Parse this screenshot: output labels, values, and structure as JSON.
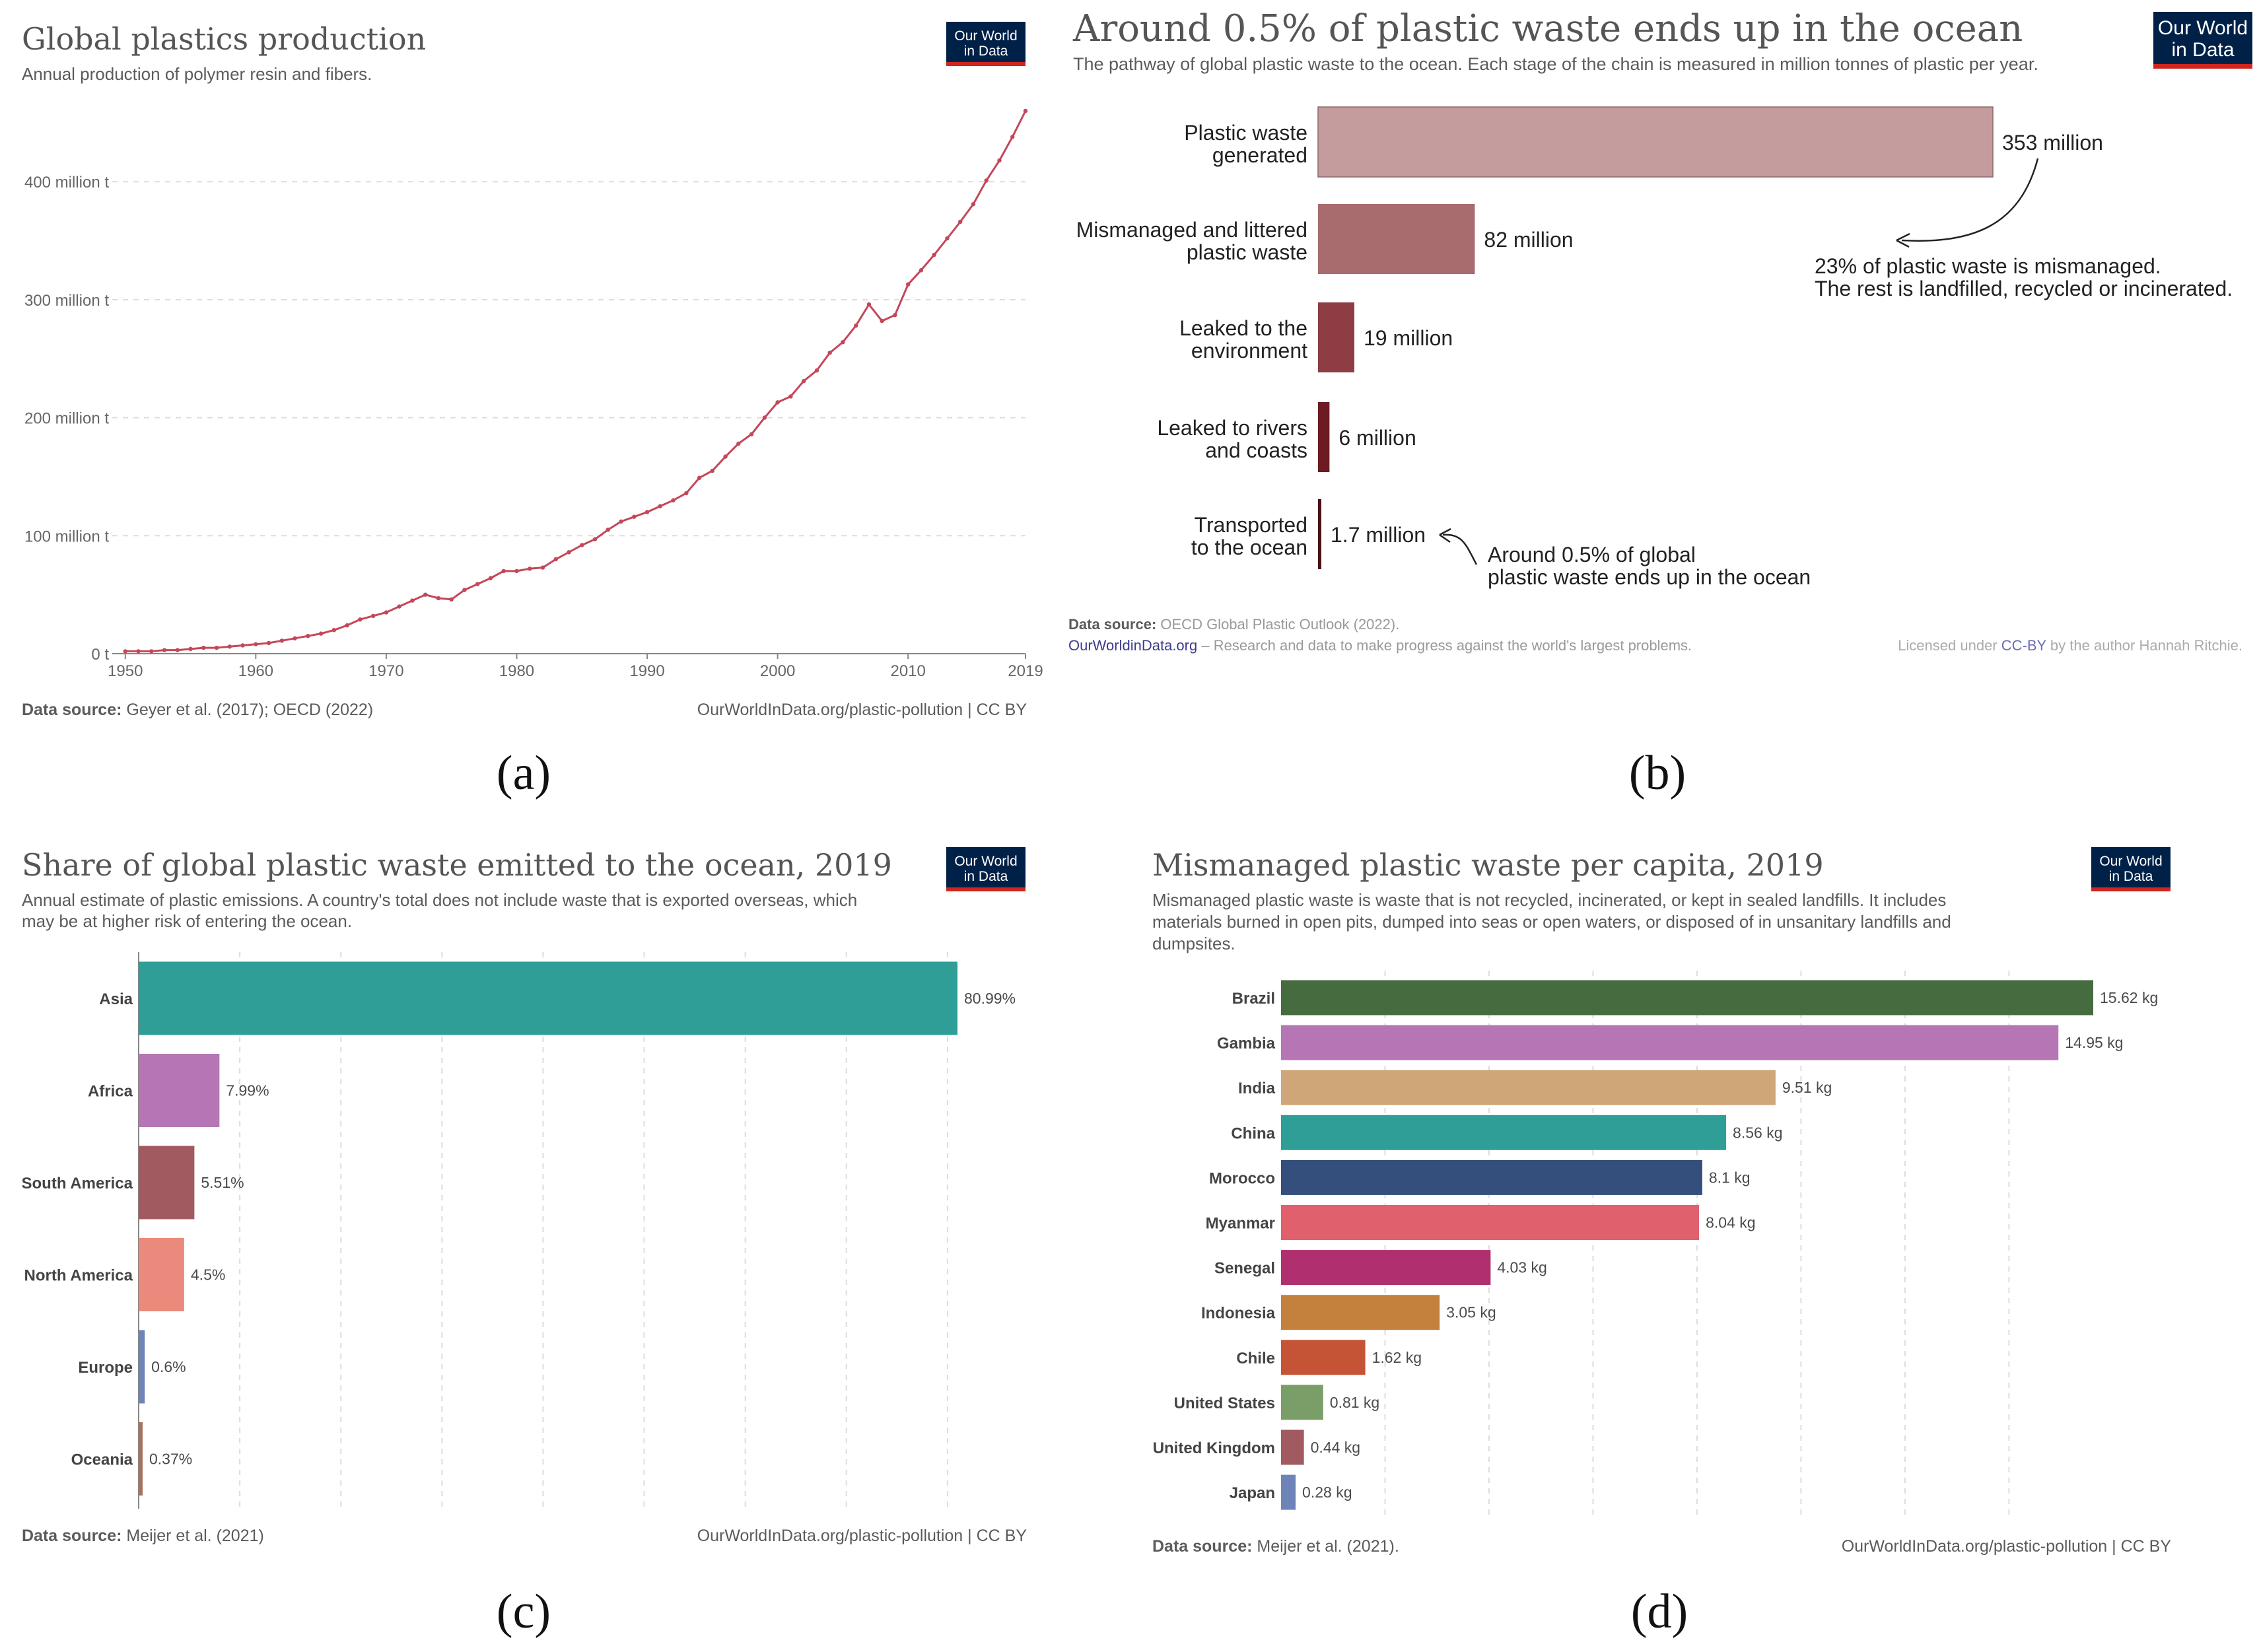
{
  "panels": {
    "a": {
      "label": "(a)",
      "title": "Global plastics production",
      "subtitle": "Annual production of polymer resin and fibers.",
      "source_label": "Data source:",
      "source_text": " Geyer et al. (2017); OECD (2022)",
      "url": "OurWorldInData.org/plastic-pollution | CC BY",
      "logo": {
        "line1": "Our World",
        "line2": "in Data"
      }
    },
    "b": {
      "label": "(b)",
      "title": "Around 0.5% of plastic waste ends up in the ocean",
      "subtitle": "The pathway of global plastic waste to the ocean. Each stage of the chain is measured in million tonnes of plastic per year.",
      "annotation1_line1": "23% of plastic waste is mismanaged.",
      "annotation1_line2": "The rest is landfilled, recycled or incinerated.",
      "annotation2_line1": "Around 0.5% of global",
      "annotation2_line2": "plastic waste ends up in the ocean",
      "source_label": "Data source:",
      "source_text": " OECD Global Plastic Outlook (2022).",
      "footer_link": "OurWorldinData.org",
      "footer_text": " – Research and data to make progress against the world's largest problems.",
      "license_pre": "Licensed under ",
      "license_link": "CC-BY",
      "license_post": " by the author Hannah Ritchie.",
      "logo": {
        "line1": "Our World",
        "line2": "in Data"
      }
    },
    "c": {
      "label": "(c)",
      "title": "Share of global plastic waste emitted to the ocean, 2019",
      "subtitle_line1": "Annual estimate of plastic emissions. A country's total does not include waste that is exported overseas, which",
      "subtitle_line2": "may be at higher risk of entering the ocean.",
      "source_label": "Data source:",
      "source_text": " Meijer et al. (2021)",
      "url": "OurWorldInData.org/plastic-pollution | CC BY",
      "logo": {
        "line1": "Our World",
        "line2": "in Data"
      }
    },
    "d": {
      "label": "(d)",
      "title": "Mismanaged plastic waste per capita, 2019",
      "subtitle_line1": "Mismanaged plastic waste is waste that is not recycled, incinerated, or kept in sealed landfills. It includes",
      "subtitle_line2": "materials burned in open pits, dumped into seas or open waters, or disposed of in unsanitary landfills and",
      "subtitle_line3": "dumpsites.",
      "source_label": "Data source:",
      "source_text": " Meijer et al. (2021).",
      "url": "OurWorldInData.org/plastic-pollution | CC BY",
      "logo": {
        "line1": "Our World",
        "line2": "in Data"
      }
    }
  },
  "chart_data": [
    {
      "type": "line",
      "title": "Global plastics production",
      "unit_suffix": " million t",
      "ylim": [
        0,
        460
      ],
      "yticks": [
        0,
        100,
        200,
        300,
        400
      ],
      "ytick_labels": [
        "0 t",
        "100 million t",
        "200 million t",
        "300 million t",
        "400 million t"
      ],
      "xlim": [
        1949,
        2019
      ],
      "xticks": [
        1950,
        1960,
        1970,
        1980,
        1990,
        2000,
        2010,
        2019
      ],
      "xtick_labels": [
        "1950",
        "1960",
        "1970",
        "1980",
        "1990",
        "2000",
        "2010",
        "2019"
      ],
      "color": "#c4475a",
      "x": [
        1950,
        1951,
        1952,
        1953,
        1954,
        1955,
        1956,
        1957,
        1958,
        1959,
        1960,
        1961,
        1962,
        1963,
        1964,
        1965,
        1966,
        1967,
        1968,
        1969,
        1970,
        1971,
        1972,
        1973,
        1974,
        1975,
        1976,
        1977,
        1978,
        1979,
        1980,
        1981,
        1982,
        1983,
        1984,
        1985,
        1986,
        1987,
        1988,
        1989,
        1990,
        1991,
        1992,
        1993,
        1994,
        1995,
        1996,
        1997,
        1998,
        1999,
        2000,
        2001,
        2002,
        2003,
        2004,
        2005,
        2006,
        2007,
        2008,
        2009,
        2010,
        2011,
        2012,
        2013,
        2014,
        2015,
        2016,
        2017,
        2018,
        2019
      ],
      "values": [
        2,
        2,
        2,
        3,
        3,
        4,
        5,
        5,
        6,
        7,
        8,
        9,
        11,
        13,
        15,
        17,
        20,
        24,
        29,
        32,
        35,
        40,
        45,
        50,
        47,
        46,
        54,
        59,
        64,
        70,
        70,
        72,
        73,
        80,
        86,
        92,
        97,
        105,
        112,
        116,
        120,
        125,
        130,
        136,
        149,
        155,
        167,
        178,
        186,
        200,
        213,
        218,
        231,
        240,
        255,
        264,
        278,
        296,
        282,
        287,
        313,
        325,
        338,
        352,
        366,
        381,
        401,
        418,
        438,
        460
      ]
    },
    {
      "type": "bar",
      "title": "Around 0.5% of plastic waste ends up in the ocean",
      "categories": [
        [
          "Plastic waste",
          "generated"
        ],
        [
          "Mismanaged and littered",
          "plastic waste"
        ],
        [
          "Leaked to the",
          "environment"
        ],
        [
          "Leaked to rivers",
          "and coasts"
        ],
        [
          "Transported",
          "to the ocean"
        ]
      ],
      "values": [
        353,
        82,
        19,
        6,
        1.7
      ],
      "labels": [
        "353 million",
        "82 million",
        "19 million",
        "6 million",
        "1.7 million"
      ],
      "colors": [
        "#c49c9e",
        "#a86b6e",
        "#8e3d45",
        "#6e1a23",
        "#4a1218"
      ],
      "xlim": [
        0,
        353
      ]
    },
    {
      "type": "bar",
      "title": "Share of global plastic waste emitted to the ocean, 2019",
      "categories": [
        "Asia",
        "Africa",
        "South America",
        "North America",
        "Europe",
        "Oceania"
      ],
      "values": [
        80.99,
        7.99,
        5.51,
        4.5,
        0.6,
        0.37
      ],
      "labels": [
        "80.99%",
        "7.99%",
        "5.51%",
        "4.5%",
        "0.6%",
        "0.37%"
      ],
      "colors": [
        "#2e9e96",
        "#b676b6",
        "#a15a5f",
        "#ea8a7c",
        "#6e84b8",
        "#a8735e"
      ],
      "xlim": [
        0,
        80.99
      ],
      "grid_step": 10
    },
    {
      "type": "bar",
      "title": "Mismanaged plastic waste per capita, 2019",
      "categories": [
        "Brazil",
        "Gambia",
        "India",
        "China",
        "Morocco",
        "Myanmar",
        "Senegal",
        "Indonesia",
        "Chile",
        "United States",
        "United Kingdom",
        "Japan"
      ],
      "values": [
        15.62,
        14.95,
        9.51,
        8.56,
        8.1,
        8.04,
        4.03,
        3.05,
        1.62,
        0.81,
        0.44,
        0.28
      ],
      "labels": [
        "15.62 kg",
        "14.95 kg",
        "9.51 kg",
        "8.56 kg",
        "8.1 kg",
        "8.04 kg",
        "4.03 kg",
        "3.05 kg",
        "1.62 kg",
        "0.81 kg",
        "0.44 kg",
        "0.28 kg"
      ],
      "colors": [
        "#456b3f",
        "#b676b6",
        "#cfa678",
        "#2e9e96",
        "#344f7b",
        "#e0606e",
        "#b02f6e",
        "#c4813e",
        "#c55437",
        "#7a9e68",
        "#a15a5f",
        "#6e84b8"
      ],
      "xlim": [
        0,
        15.62
      ],
      "grid_step": 2
    }
  ]
}
